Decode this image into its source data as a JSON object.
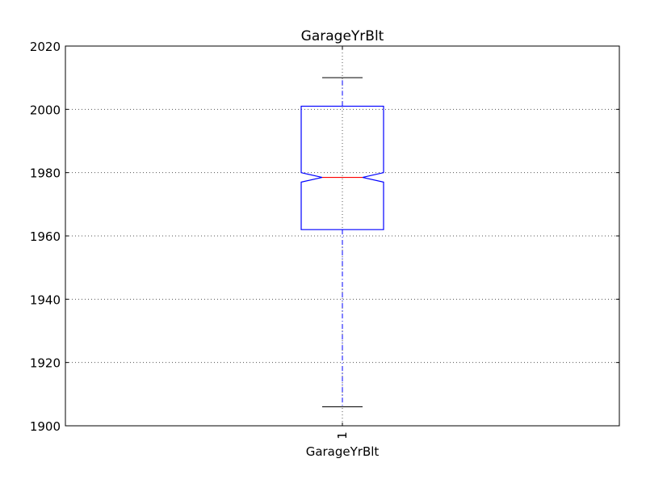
{
  "chart_data": {
    "type": "boxplot",
    "title": "GarageYrBlt",
    "xlabel": "GarageYrBlt",
    "ylabel": "",
    "ylim": [
      1900,
      2020
    ],
    "yticks": [
      1900,
      1920,
      1940,
      1960,
      1980,
      2000,
      2020
    ],
    "categories": [
      "1"
    ],
    "grid": true,
    "notched": true,
    "boxes": [
      {
        "category": "1",
        "whisker_low": 1906,
        "q1": 1962,
        "median": 1978.5,
        "q3": 2001,
        "whisker_high": 2010,
        "notch_low": 1977,
        "notch_high": 1980
      }
    ],
    "colors": {
      "box": "#0000ff",
      "median": "#ff0000",
      "whisker": "#0000ff",
      "cap": "#000000",
      "grid": "#555555",
      "axes": "#000000"
    }
  }
}
